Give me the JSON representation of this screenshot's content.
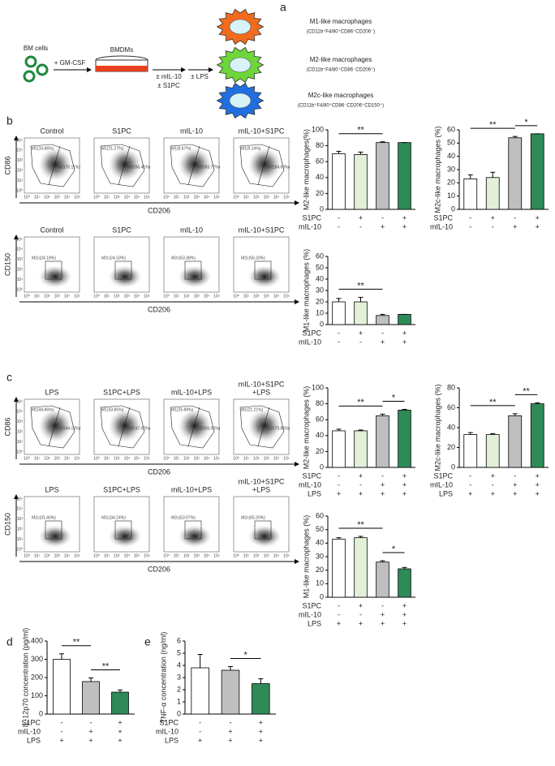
{
  "panel_labels": [
    "a",
    "b",
    "c",
    "d",
    "e"
  ],
  "diagram": {
    "start": "BM cells",
    "step1": "+ GM-CSF",
    "dish": "BMDMs",
    "treat": [
      "± mIL-10",
      "± S1PC"
    ],
    "lps": "± LPS",
    "outcomes": [
      {
        "name": "M1-like macrophages",
        "markers": "(CD11b⁺F4/80⁺CD86⁺CD206⁻)",
        "color": "#f26b1d"
      },
      {
        "name": "M2-like macrophages",
        "markers": "(CD11b⁺F4/80⁺CD86⁻CD206⁺)",
        "color": "#6dd63a"
      },
      {
        "name": "M2c-like macrophages",
        "markers": "(CD11b⁺F4/80⁺CD86⁻CD206⁺CD150⁺)",
        "color": "#1f6fe0"
      }
    ]
  },
  "flow_ticks": [
    "10⁰",
    "10¹",
    "10²",
    "10³",
    "10⁴",
    "10⁵"
  ],
  "flow": [
    {
      "y_label": "CD86",
      "x_label": "CD206",
      "panels": [
        {
          "title_lines": [
            "Control"
          ],
          "gates": [
            "M1(10.86%)",
            "M2(70.11%)"
          ]
        },
        {
          "title_lines": [
            "S1PC"
          ],
          "gates": [
            "M1(21.27%)",
            "M2(66.41%)"
          ]
        },
        {
          "title_lines": [
            "mIL-10"
          ],
          "gates": [
            "M1(8.67%)",
            "M2(83.77%)"
          ]
        },
        {
          "title_lines": [
            "mIL-10+S1PC"
          ],
          "gates": [
            "M1(9.14%)",
            "M2(84.60%)"
          ]
        }
      ]
    },
    {
      "y_label": "CD150",
      "x_label": "CD206",
      "panels": [
        {
          "title_lines": [
            "Control"
          ],
          "gates": [
            "M2c(24.18%)"
          ]
        },
        {
          "title_lines": [
            "S1PC"
          ],
          "gates": [
            "M2c(24.33%)"
          ]
        },
        {
          "title_lines": [
            "mIL-10"
          ],
          "gates": [
            "M2c(53.38%)"
          ]
        },
        {
          "title_lines": [
            "mIL-10+S1PC"
          ],
          "gates": [
            "M2c(56.33%)"
          ]
        }
      ]
    },
    {
      "y_label": "CD86",
      "x_label": "CD206",
      "panels": [
        {
          "title_lines": [
            "LPS"
          ],
          "gates": [
            "M1(44.86%)",
            "M2(44.13%)"
          ]
        },
        {
          "title_lines": [
            "S1PC+LPS"
          ],
          "gates": [
            "M1(43.85%)",
            "M2(47.02%)"
          ]
        },
        {
          "title_lines": [
            "mIL-10+LPS"
          ],
          "gates": [
            "M1(25.89%)",
            "M2(65.05%)"
          ]
        },
        {
          "title_lines": [
            "mIL-10+S1PC",
            "+LPS"
          ],
          "gates": [
            "M1(21.21%)",
            "M2(70.85%)"
          ]
        }
      ]
    },
    {
      "y_label": "CD150",
      "x_label": "CD206",
      "panels": [
        {
          "title_lines": [
            "LPS"
          ],
          "gates": [
            "M2c(31.40%)"
          ]
        },
        {
          "title_lines": [
            "S1PC+LPS"
          ],
          "gates": [
            "M2c(34.24%)"
          ]
        },
        {
          "title_lines": [
            "mIL-10+LPS"
          ],
          "gates": [
            "M2c(53.07%)"
          ]
        },
        {
          "title_lines": [
            "mIL-10+S1PC",
            "+LPS"
          ],
          "gates": [
            "M2c(65.20%)"
          ]
        }
      ]
    }
  ],
  "chart_data": [
    {
      "type": "bar",
      "y_label": "M2-like macrophages(%)",
      "values": [
        70,
        69,
        84,
        84
      ],
      "errors": [
        3,
        3,
        1,
        0
      ],
      "colors": [
        "#ffffff",
        "#e2f0d9",
        "#bfbfbf",
        "#2e8b57"
      ],
      "ylim": [
        0,
        100
      ],
      "yticks": [
        0,
        20,
        40,
        60,
        80,
        100
      ],
      "significance": [
        {
          "from": 0,
          "to": 2,
          "label": "**"
        }
      ],
      "conditions": [
        {
          "name": "S1PC",
          "values": [
            "-",
            "+",
            "-",
            "+"
          ]
        },
        {
          "name": "mIL-10",
          "values": [
            "-",
            "-",
            "+",
            "+"
          ]
        }
      ]
    },
    {
      "type": "bar",
      "y_label": "M2c-like macrophages (%)",
      "values": [
        23,
        24,
        54,
        57
      ],
      "errors": [
        3,
        4,
        1,
        0
      ],
      "colors": [
        "#ffffff",
        "#e2f0d9",
        "#bfbfbf",
        "#2e8b57"
      ],
      "ylim": [
        0,
        60
      ],
      "yticks": [
        0,
        10,
        20,
        30,
        40,
        50,
        60
      ],
      "significance": [
        {
          "from": 0,
          "to": 2,
          "label": "**"
        },
        {
          "from": 2,
          "to": 3,
          "label": "*"
        }
      ],
      "conditions": [
        {
          "name": "S1PC",
          "values": [
            "-",
            "+",
            "-",
            "+"
          ]
        },
        {
          "name": "mIL-10",
          "values": [
            "-",
            "-",
            "+",
            "+"
          ]
        }
      ]
    },
    {
      "type": "bar",
      "y_label": "M1-like macrophages (%)",
      "values": [
        20,
        20,
        8,
        9
      ],
      "errors": [
        3,
        4,
        1,
        0
      ],
      "colors": [
        "#ffffff",
        "#e2f0d9",
        "#bfbfbf",
        "#2e8b57"
      ],
      "ylim": [
        0,
        60
      ],
      "yticks": [
        0,
        10,
        20,
        30,
        40,
        50,
        60
      ],
      "significance": [
        {
          "from": 0,
          "to": 2,
          "label": "**"
        }
      ],
      "conditions": [
        {
          "name": "S1PC",
          "values": [
            "-",
            "+",
            "-",
            "+"
          ]
        },
        {
          "name": "mIL-10",
          "values": [
            "-",
            "-",
            "+",
            "+"
          ]
        }
      ]
    },
    {
      "type": "bar",
      "y_label": "M2-like macrophages (%)",
      "values": [
        46,
        46,
        65,
        72
      ],
      "errors": [
        2,
        1,
        2,
        1
      ],
      "colors": [
        "#ffffff",
        "#e2f0d9",
        "#bfbfbf",
        "#2e8b57"
      ],
      "ylim": [
        0,
        100
      ],
      "yticks": [
        0,
        20,
        40,
        60,
        80,
        100
      ],
      "significance": [
        {
          "from": 0,
          "to": 2,
          "label": "**"
        },
        {
          "from": 2,
          "to": 3,
          "label": "*"
        }
      ],
      "conditions": [
        {
          "name": "S1PC",
          "values": [
            "-",
            "+",
            "-",
            "+"
          ]
        },
        {
          "name": "mIL-10",
          "values": [
            "-",
            "-",
            "+",
            "+"
          ]
        },
        {
          "name": "LPS",
          "values": [
            "+",
            "+",
            "+",
            "+"
          ]
        }
      ]
    },
    {
      "type": "bar",
      "y_label": "M2c-like macrophages (%)",
      "values": [
        33,
        33,
        52,
        64
      ],
      "errors": [
        2,
        1,
        2,
        1
      ],
      "colors": [
        "#ffffff",
        "#e2f0d9",
        "#bfbfbf",
        "#2e8b57"
      ],
      "ylim": [
        0,
        80
      ],
      "yticks": [
        0,
        20,
        40,
        60,
        80
      ],
      "significance": [
        {
          "from": 0,
          "to": 2,
          "label": "**"
        },
        {
          "from": 2,
          "to": 3,
          "label": "**"
        }
      ],
      "conditions": [
        {
          "name": "S1PC",
          "values": [
            "-",
            "+",
            "-",
            "+"
          ]
        },
        {
          "name": "mIL-10",
          "values": [
            "-",
            "-",
            "+",
            "+"
          ]
        },
        {
          "name": "LPS",
          "values": [
            "+",
            "+",
            "+",
            "+"
          ]
        }
      ]
    },
    {
      "type": "bar",
      "y_label": "M1-like macrophages (%)",
      "values": [
        43,
        44,
        26,
        21
      ],
      "errors": [
        1,
        1,
        1,
        1
      ],
      "colors": [
        "#ffffff",
        "#e2f0d9",
        "#bfbfbf",
        "#2e8b57"
      ],
      "ylim": [
        0,
        60
      ],
      "yticks": [
        0,
        10,
        20,
        30,
        40,
        50,
        60
      ],
      "significance": [
        {
          "from": 0,
          "to": 2,
          "label": "**"
        },
        {
          "from": 2,
          "to": 3,
          "label": "*"
        }
      ],
      "conditions": [
        {
          "name": "S1PC",
          "values": [
            "-",
            "+",
            "-",
            "+"
          ]
        },
        {
          "name": "mIL-10",
          "values": [
            "-",
            "-",
            "+",
            "+"
          ]
        },
        {
          "name": "LPS",
          "values": [
            "+",
            "+",
            "+",
            "+"
          ]
        }
      ]
    },
    {
      "type": "bar",
      "y_label": "IL-12p70 concentration (pg/ml)",
      "values": [
        300,
        178,
        120
      ],
      "errors": [
        30,
        20,
        12
      ],
      "colors": [
        "#ffffff",
        "#bfbfbf",
        "#2e8b57"
      ],
      "ylim": [
        0,
        400
      ],
      "yticks": [
        0,
        100,
        200,
        300,
        400
      ],
      "significance": [
        {
          "from": 0,
          "to": 1,
          "label": "**"
        },
        {
          "from": 1,
          "to": 2,
          "label": "**"
        }
      ],
      "conditions": [
        {
          "name": "S1PC",
          "values": [
            "-",
            "-",
            "+"
          ]
        },
        {
          "name": "mIL-10",
          "values": [
            "-",
            "+",
            "+"
          ]
        },
        {
          "name": "LPS",
          "values": [
            "+",
            "+",
            "+"
          ]
        }
      ]
    },
    {
      "type": "bar",
      "y_label": "TNF-α concentration (ng/ml)",
      "values": [
        3.8,
        3.6,
        2.5
      ],
      "errors": [
        1.1,
        0.3,
        0.4
      ],
      "colors": [
        "#ffffff",
        "#bfbfbf",
        "#2e8b57"
      ],
      "ylim": [
        0,
        6
      ],
      "yticks": [
        0,
        1,
        2,
        3,
        4,
        5,
        6
      ],
      "significance": [
        {
          "from": 1,
          "to": 2,
          "label": "*"
        }
      ],
      "conditions": [
        {
          "name": "S1PC",
          "values": [
            "-",
            "-",
            "+"
          ]
        },
        {
          "name": "mIL-10",
          "values": [
            "-",
            "+",
            "+"
          ]
        },
        {
          "name": "LPS",
          "values": [
            "+",
            "+",
            "+"
          ]
        }
      ]
    }
  ]
}
